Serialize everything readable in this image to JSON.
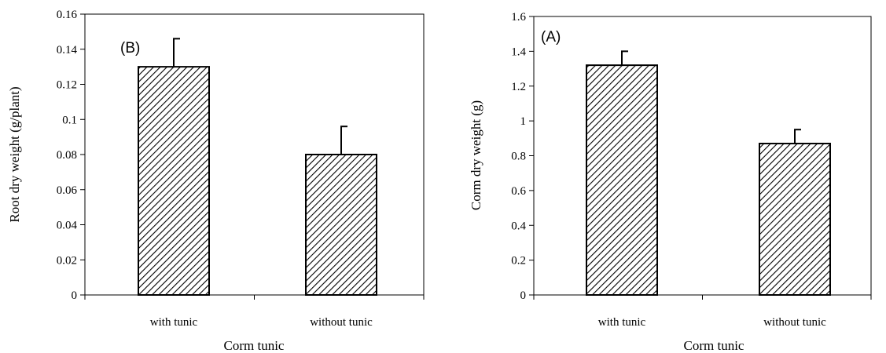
{
  "chart_data": [
    {
      "type": "bar",
      "panel_label": "(B)",
      "categories": [
        "with tunic",
        "without tunic"
      ],
      "values": [
        0.13,
        0.08
      ],
      "errors": [
        0.016,
        0.016
      ],
      "xlabel": "Corm tunic",
      "ylabel": "Root dry weight (g/plant)",
      "ylim": [
        0,
        0.16
      ],
      "yticks": [
        "0",
        "0.02",
        "0.04",
        "0.06",
        "0.08",
        "0.1",
        "0.12",
        "0.14",
        "0.16"
      ],
      "bar_fill": "diagonal hatch",
      "grid": false,
      "legend": "none"
    },
    {
      "type": "bar",
      "panel_label": "(A)",
      "categories": [
        "with tunic",
        "without tunic"
      ],
      "values": [
        1.32,
        0.87
      ],
      "errors": [
        0.08,
        0.08
      ],
      "xlabel": "Corm tunic",
      "ylabel": "Corm dry weight (g)",
      "ylim": [
        0,
        1.6
      ],
      "yticks": [
        "0",
        "0.2",
        "0.4",
        "0.6",
        "0.8",
        "1",
        "1.2",
        "1.4",
        "1.6"
      ],
      "bar_fill": "diagonal hatch",
      "grid": false,
      "legend": "none"
    }
  ],
  "colors": {
    "bar_stroke": "#000000",
    "hatch": "#000000",
    "background": "#ffffff"
  }
}
